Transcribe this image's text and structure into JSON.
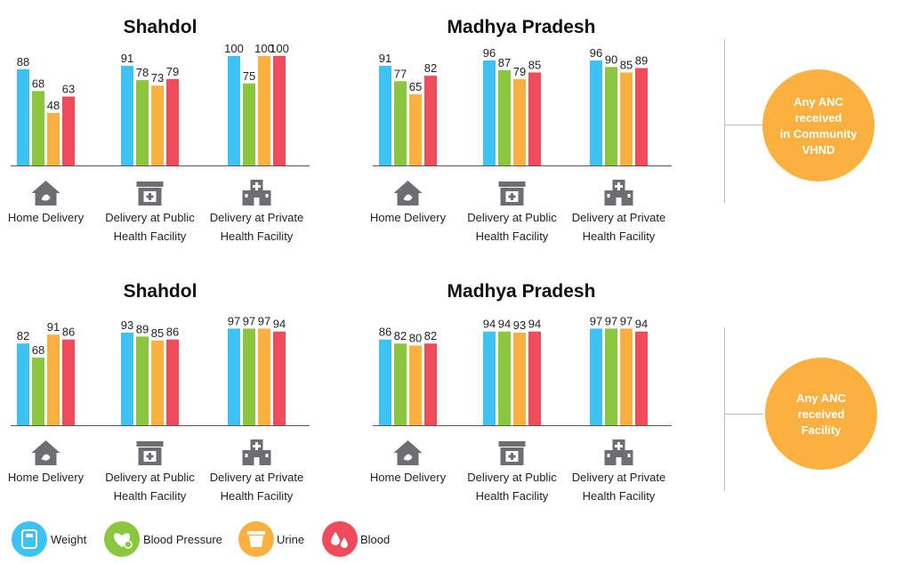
{
  "colors": {
    "weight": "#3EC1F3",
    "blood_pressure": "#8CC63F",
    "urine": "#FBB040",
    "blood": "#EF4B5A",
    "axis": "#555555",
    "icon": "#6D6E71",
    "circle": "#FBB040",
    "divider": "#BBBBBB"
  },
  "legend": [
    {
      "name": "Weight",
      "color": "#3EC1F3",
      "icon": "weight-scale-icon"
    },
    {
      "name": "Blood Pressure",
      "color": "#8CC63F",
      "icon": "heart-pressure-icon"
    },
    {
      "name": "Urine",
      "color": "#FBB040",
      "icon": "urine-cup-icon"
    },
    {
      "name": "Blood",
      "color": "#EF4B5A",
      "icon": "blood-drops-icon"
    }
  ],
  "circles": [
    {
      "lines": [
        "Any ANC",
        "received",
        "in Community",
        "VHND"
      ]
    },
    {
      "lines": [
        "Any ANC",
        "received",
        "Facility"
      ]
    }
  ],
  "chart_data": [
    {
      "type": "bar",
      "title": "Shahdol",
      "row": "Any ANC received in Community VHND",
      "ylim": [
        0,
        100
      ],
      "categories": [
        {
          "lines": [
            "Home Delivery"
          ],
          "icon": "home-icon"
        },
        {
          "lines": [
            "Delivery at Public",
            "Health Facility"
          ],
          "icon": "public-facility-icon"
        },
        {
          "lines": [
            "Delivery at Private",
            "Health Facility"
          ],
          "icon": "private-hospital-icon"
        }
      ],
      "series": [
        {
          "name": "Weight",
          "values": [
            88,
            91,
            100
          ]
        },
        {
          "name": "Blood Pressure",
          "values": [
            68,
            78,
            75
          ]
        },
        {
          "name": "Urine",
          "values": [
            48,
            73,
            100
          ]
        },
        {
          "name": "Blood",
          "values": [
            63,
            79,
            100
          ]
        }
      ]
    },
    {
      "type": "bar",
      "title": "Madhya Pradesh",
      "row": "Any ANC received in Community VHND",
      "ylim": [
        0,
        100
      ],
      "categories": [
        {
          "lines": [
            "Home Delivery"
          ],
          "icon": "home-icon"
        },
        {
          "lines": [
            "Delivery at Public",
            "Health Facility"
          ],
          "icon": "public-facility-icon"
        },
        {
          "lines": [
            "Delivery at Private",
            "Health Facility"
          ],
          "icon": "private-hospital-icon"
        }
      ],
      "series": [
        {
          "name": "Weight",
          "values": [
            91,
            96,
            96
          ]
        },
        {
          "name": "Blood Pressure",
          "values": [
            77,
            87,
            90
          ]
        },
        {
          "name": "Urine",
          "values": [
            65,
            79,
            85
          ]
        },
        {
          "name": "Blood",
          "values": [
            82,
            85,
            89
          ]
        }
      ]
    },
    {
      "type": "bar",
      "title": "Shahdol",
      "row": "Any ANC received Facility",
      "ylim": [
        0,
        100
      ],
      "categories": [
        {
          "lines": [
            "Home Delivery"
          ],
          "icon": "home-icon"
        },
        {
          "lines": [
            "Delivery at Public",
            "Health Facility"
          ],
          "icon": "public-facility-icon"
        },
        {
          "lines": [
            "Delivery at Private",
            "Health Facility"
          ],
          "icon": "private-hospital-icon"
        }
      ],
      "series": [
        {
          "name": "Weight",
          "values": [
            82,
            93,
            97
          ]
        },
        {
          "name": "Blood Pressure",
          "values": [
            68,
            89,
            97
          ]
        },
        {
          "name": "Urine",
          "values": [
            91,
            85,
            97
          ]
        },
        {
          "name": "Blood",
          "values": [
            86,
            86,
            94
          ]
        }
      ]
    },
    {
      "type": "bar",
      "title": "Madhya Pradesh",
      "row": "Any ANC received Facility",
      "ylim": [
        0,
        100
      ],
      "categories": [
        {
          "lines": [
            "Home Delivery"
          ],
          "icon": "home-icon"
        },
        {
          "lines": [
            "Delivery at Public",
            "Health Facility"
          ],
          "icon": "public-facility-icon"
        },
        {
          "lines": [
            "Delivery at Private",
            "Health Facility"
          ],
          "icon": "private-hospital-icon"
        }
      ],
      "series": [
        {
          "name": "Weight",
          "values": [
            86,
            94,
            97
          ]
        },
        {
          "name": "Blood Pressure",
          "values": [
            82,
            94,
            97
          ]
        },
        {
          "name": "Urine",
          "values": [
            80,
            93,
            97
          ]
        },
        {
          "name": "Blood",
          "values": [
            82,
            94,
            94
          ]
        }
      ]
    }
  ]
}
